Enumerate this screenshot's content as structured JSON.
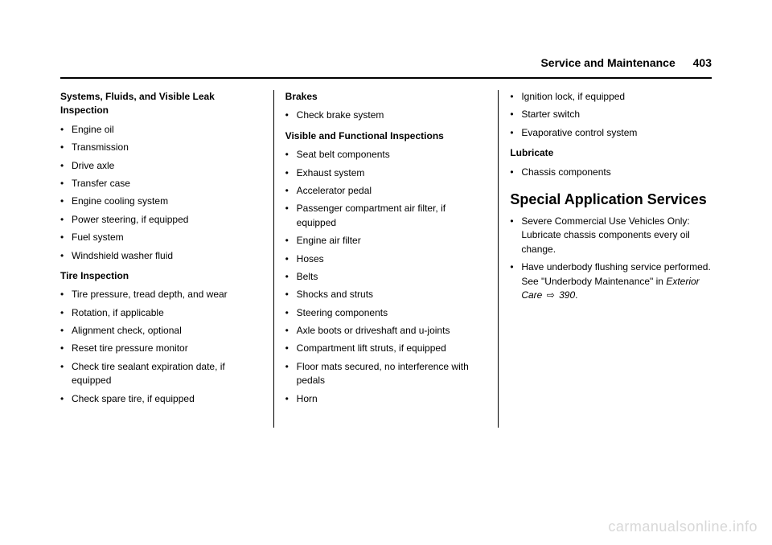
{
  "header": {
    "section": "Service and Maintenance",
    "page_number": "403"
  },
  "col1": {
    "h1": "Systems, Fluids, and Visible Leak Inspection",
    "list1": [
      "Engine oil",
      "Transmission",
      "Drive axle",
      "Transfer case",
      "Engine cooling system",
      "Power steering, if equipped",
      "Fuel system",
      "Windshield washer fluid"
    ],
    "h2": "Tire Inspection",
    "list2": [
      "Tire pressure, tread depth, and wear",
      "Rotation, if applicable",
      "Alignment check, optional",
      "Reset tire pressure monitor",
      "Check tire sealant expiration date, if equipped",
      "Check spare tire, if equipped"
    ]
  },
  "col2": {
    "h1": "Brakes",
    "list1": [
      "Check brake system"
    ],
    "h2": "Visible and Functional Inspections",
    "list2": [
      "Seat belt components",
      "Exhaust system",
      "Accelerator pedal",
      "Passenger compartment air filter, if equipped",
      "Engine air filter",
      "Hoses",
      "Belts",
      "Shocks and struts",
      "Steering components",
      "Axle boots or driveshaft and u-joints",
      "Compartment lift struts, if equipped",
      "Floor mats secured, no interference with pedals",
      "Horn"
    ]
  },
  "col3": {
    "list0": [
      "Ignition lock, if equipped",
      "Starter switch",
      "Evaporative control system"
    ],
    "h1": "Lubricate",
    "list1": [
      "Chassis components"
    ],
    "h2": "Special Application Services",
    "list2_i0": "Severe Commercial Use Vehicles Only: Lubricate chassis components every oil change.",
    "list2_i1_a": "Have underbody flushing service performed. See \"Underbody Maintenance\" in ",
    "list2_i1_ref": "Exterior Care",
    "list2_i1_arrow": "⇨",
    "list2_i1_page": "390"
  },
  "watermark": "carmanualsonline.info"
}
